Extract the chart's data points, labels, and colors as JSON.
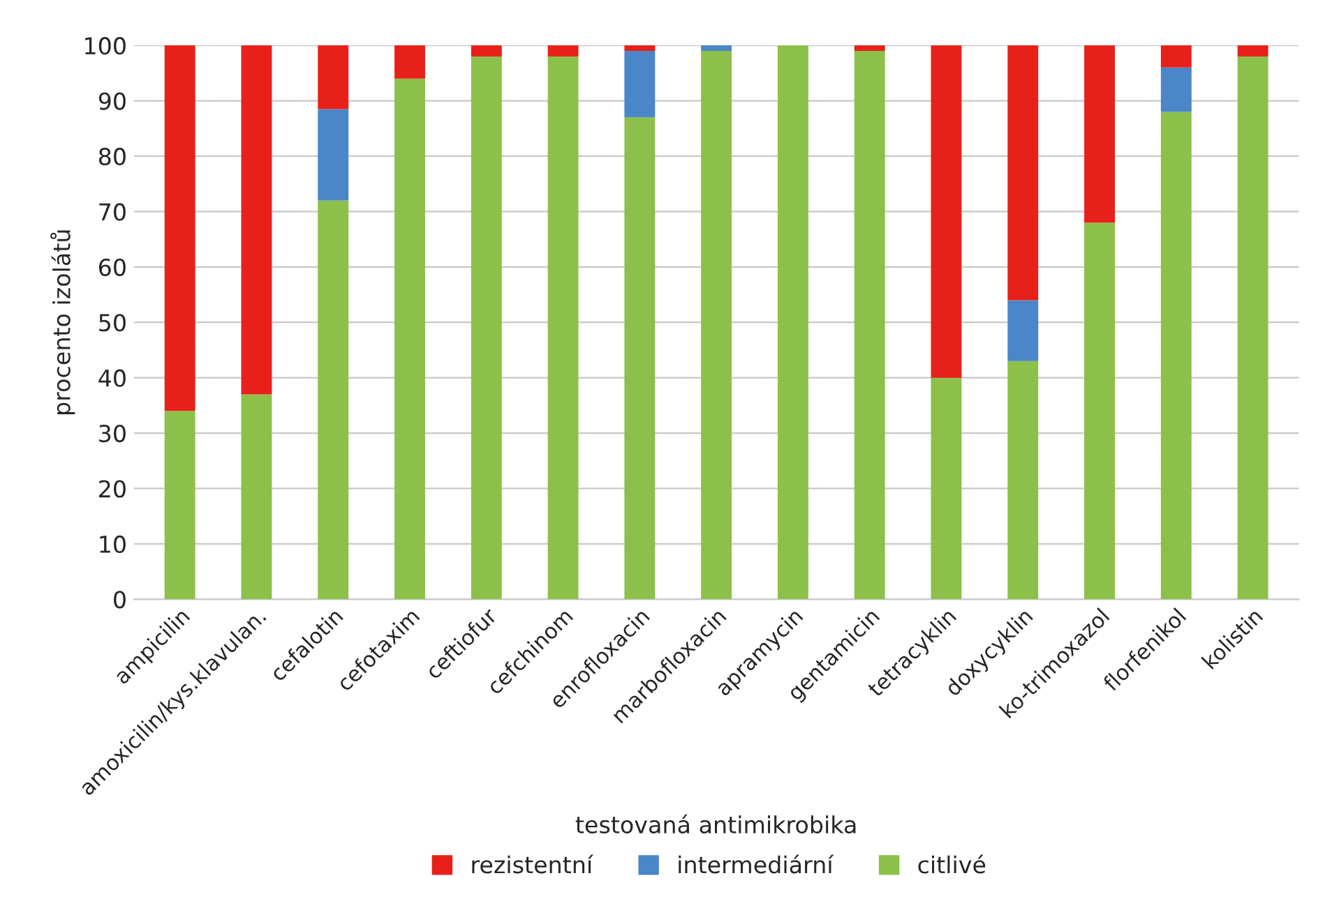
{
  "chart_data": {
    "type": "bar",
    "stacked": true,
    "xlabel": "testovaná antimikrobika",
    "ylabel": "procento izolátů",
    "categories": [
      "ampicilin",
      "amoxicilin/kys.klavulan.",
      "cefalotin",
      "cefotaxim",
      "ceftiofur",
      "cefchinom",
      "enrofloxacin",
      "marbofloxacin",
      "apramycin",
      "gentamicin",
      "tetracyklin",
      "doxycyklin",
      "ko-trimoxazol",
      "florfenikol",
      "kolistin"
    ],
    "series": [
      {
        "name": "citlivé",
        "color": "#8cc04a",
        "values": [
          34,
          37,
          72,
          94,
          98,
          98,
          87,
          99,
          100,
          99,
          40,
          43,
          68,
          88,
          98
        ]
      },
      {
        "name": "intermediární",
        "color": "#4a86c8",
        "values": [
          0,
          0,
          16.5,
          0,
          0,
          0,
          12,
          1,
          0,
          0,
          0,
          11,
          0,
          8,
          0
        ]
      },
      {
        "name": "rezistentní",
        "color": "#e8201a",
        "values": [
          66,
          63,
          11.5,
          6,
          2,
          2,
          1,
          0,
          0,
          1,
          60,
          46,
          32,
          4,
          2
        ]
      }
    ],
    "ylim": [
      0,
      100
    ],
    "yticks": [
      0,
      10,
      20,
      30,
      40,
      50,
      60,
      70,
      80,
      90,
      100
    ],
    "grid": "y",
    "legend": "bottom"
  }
}
